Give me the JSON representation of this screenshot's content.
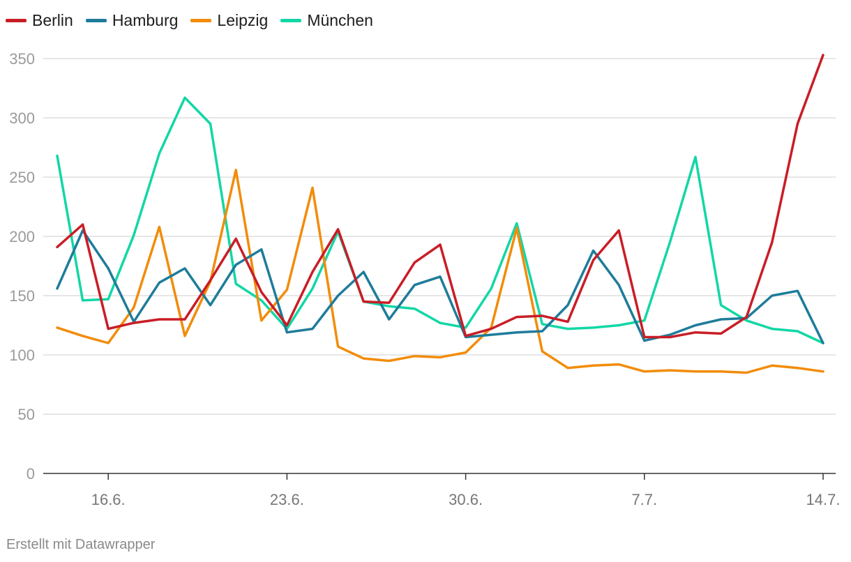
{
  "chart_data": {
    "type": "line",
    "title": "",
    "xlabel": "",
    "ylabel": "",
    "ylim": [
      0,
      350
    ],
    "y_ticks": [
      0,
      50,
      100,
      150,
      200,
      250,
      300,
      350
    ],
    "grid": true,
    "legend": "top-left",
    "x_tick_labels": [
      "16.6.",
      "23.6.",
      "30.6.",
      "7.7.",
      "14.7."
    ],
    "x_tick_indices": [
      2,
      9,
      16,
      23,
      30
    ],
    "x": [
      "14.6.",
      "15.6.",
      "16.6.",
      "17.6.",
      "18.6.",
      "19.6.",
      "20.6.",
      "21.6.",
      "22.6.",
      "23.6.",
      "24.6.",
      "25.6.",
      "26.6.",
      "27.6.",
      "28.6.",
      "29.6.",
      "30.6.",
      "1.7.",
      "2.7.",
      "3.7.",
      "4.7.",
      "5.7.",
      "6.7.",
      "7.7.",
      "8.7.",
      "9.7.",
      "10.7.",
      "11.7.",
      "12.7.",
      "13.7.",
      "14.7."
    ],
    "series": [
      {
        "name": "Berlin",
        "color": "#c91d26",
        "values": [
          191,
          210,
          122,
          127,
          130,
          130,
          163,
          198,
          153,
          125,
          170,
          206,
          145,
          144,
          178,
          193,
          116,
          122,
          132,
          133,
          128,
          180,
          205,
          115,
          115,
          119,
          118,
          132,
          195,
          295,
          353
        ]
      },
      {
        "name": "Hamburg",
        "color": "#1e7c9a",
        "values": [
          156,
          205,
          173,
          128,
          161,
          173,
          142,
          176,
          189,
          119,
          122,
          150,
          170,
          130,
          159,
          166,
          115,
          117,
          119,
          120,
          142,
          188,
          159,
          112,
          117,
          125,
          130,
          131,
          150,
          154,
          110
        ]
      },
      {
        "name": "Leipzig",
        "color": "#f28c0a",
        "values": [
          123,
          116,
          110,
          140,
          208,
          116,
          162,
          256,
          129,
          155,
          241,
          107,
          97,
          95,
          99,
          98,
          102,
          123,
          207,
          103,
          89,
          91,
          92,
          86,
          87,
          86,
          86,
          85,
          91,
          89,
          86
        ]
      },
      {
        "name": "München",
        "color": "#12d7a5",
        "values": [
          268,
          146,
          147,
          201,
          270,
          317,
          295,
          160,
          146,
          122,
          156,
          204,
          145,
          141,
          139,
          127,
          123,
          156,
          211,
          126,
          122,
          123,
          125,
          129,
          195,
          267,
          142,
          129,
          122,
          120,
          110
        ]
      }
    ]
  },
  "footer": {
    "credit": "Erstellt mit Datawrapper"
  }
}
